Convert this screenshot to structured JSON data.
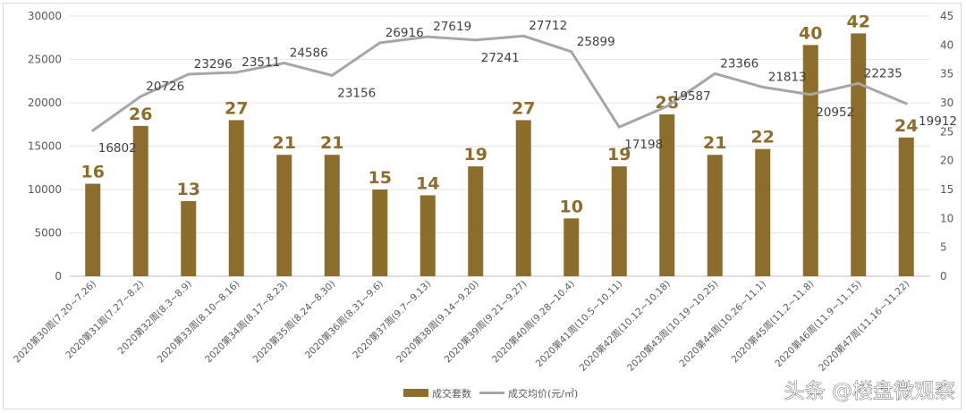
{
  "chart_data": {
    "type": "bar",
    "title": "",
    "categories": [
      "2020第30周(7.20~7.26)",
      "2020第31周(7.27~8.2)",
      "2020第32周(8.3~8.9)",
      "2020第33周(8.10~8.16)",
      "2020第34周(8.17~8.23)",
      "2020第35周(8.24~8.30)",
      "2020第36周(8.31~9.6)",
      "2020第37周(9.7~9.13)",
      "2020第38周(9.14~9.20)",
      "2020第39周(9.21~9.27)",
      "2020第40周(9.28~10.4)",
      "2020第41周(10.5~10.11)",
      "2020第42周(10.12~10.18)",
      "2020第43周(10.19~10.25)",
      "2020第44周(10.26~11.1)",
      "2020第45周(11.2~11.8)",
      "2020第46周(11.9~11.15)",
      "2020第47周(11.16~11.22)"
    ],
    "series": [
      {
        "name": "成交套数",
        "type": "bar",
        "axis": "right",
        "color": "#8c6d2c",
        "values": [
          16,
          26,
          13,
          27,
          21,
          21,
          15,
          14,
          19,
          27,
          10,
          19,
          28,
          21,
          22,
          40,
          42,
          24
        ]
      },
      {
        "name": "成交均价(元/㎡)",
        "type": "line",
        "axis": "left",
        "color": "#a6a6a6",
        "values": [
          16802,
          20726,
          23296,
          23511,
          24586,
          23156,
          26916,
          27619,
          27241,
          27712,
          25899,
          17198,
          19587,
          23366,
          21813,
          20952,
          22235,
          19912
        ]
      }
    ],
    "y_left": {
      "ylim": [
        0,
        30000
      ],
      "ticks": [
        "0",
        "5000",
        "10000",
        "15000",
        "20000",
        "25000",
        "30000"
      ]
    },
    "y_right": {
      "ylim": [
        0,
        45
      ],
      "ticks": [
        "0",
        "5",
        "10",
        "15",
        "20",
        "25",
        "30",
        "35",
        "40",
        "45"
      ]
    },
    "grid": true,
    "legend_position": "bottom-center"
  },
  "watermark": "头条 @楼盘微观察"
}
